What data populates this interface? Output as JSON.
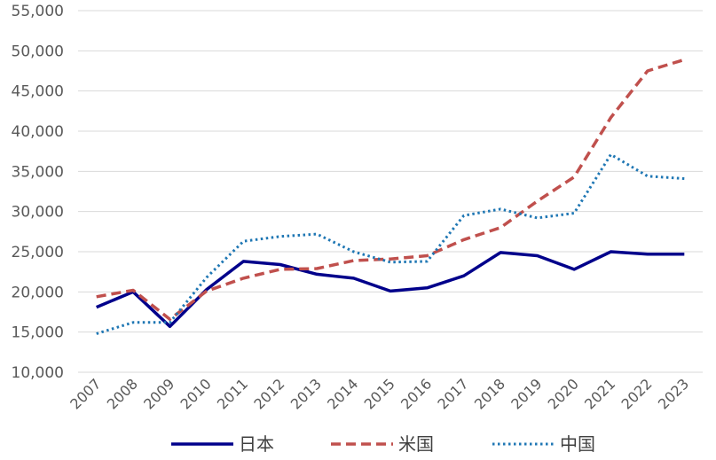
{
  "chart_data": {
    "type": "line",
    "title": "",
    "xlabel": "",
    "ylabel": "",
    "x": [
      "2007",
      "2008",
      "2009",
      "2010",
      "2011",
      "2012",
      "2013",
      "2014",
      "2015",
      "2016",
      "2017",
      "2018",
      "2019",
      "2020",
      "2021",
      "2022",
      "2023"
    ],
    "ylim": [
      10000,
      55000
    ],
    "yticks": [
      10000,
      15000,
      20000,
      25000,
      30000,
      35000,
      40000,
      45000,
      50000,
      55000
    ],
    "ytick_labels": [
      "10,000",
      "15,000",
      "20,000",
      "25,000",
      "30,000",
      "35,000",
      "40,000",
      "45,000",
      "50,000",
      "55,000"
    ],
    "grid": true,
    "legend_position": "bottom",
    "series": [
      {
        "name": "日本",
        "color": "#00008B",
        "style": "solid",
        "values": [
          18100,
          20000,
          15700,
          20300,
          23800,
          23400,
          22200,
          21700,
          20100,
          20500,
          22000,
          24900,
          24500,
          22800,
          25000,
          24700,
          24700
        ]
      },
      {
        "name": "米国",
        "color": "#C0504D",
        "style": "dashed",
        "values": [
          19400,
          20200,
          16600,
          20100,
          21700,
          22800,
          22900,
          23900,
          24100,
          24500,
          26500,
          28000,
          31300,
          34300,
          41700,
          47500,
          48900
        ]
      },
      {
        "name": "中国",
        "color": "#1F77B4",
        "style": "dotted",
        "values": [
          14800,
          16200,
          16200,
          21800,
          26300,
          26900,
          27200,
          25000,
          23700,
          23800,
          29500,
          30300,
          29200,
          29800,
          37100,
          34400,
          34100
        ]
      }
    ]
  }
}
